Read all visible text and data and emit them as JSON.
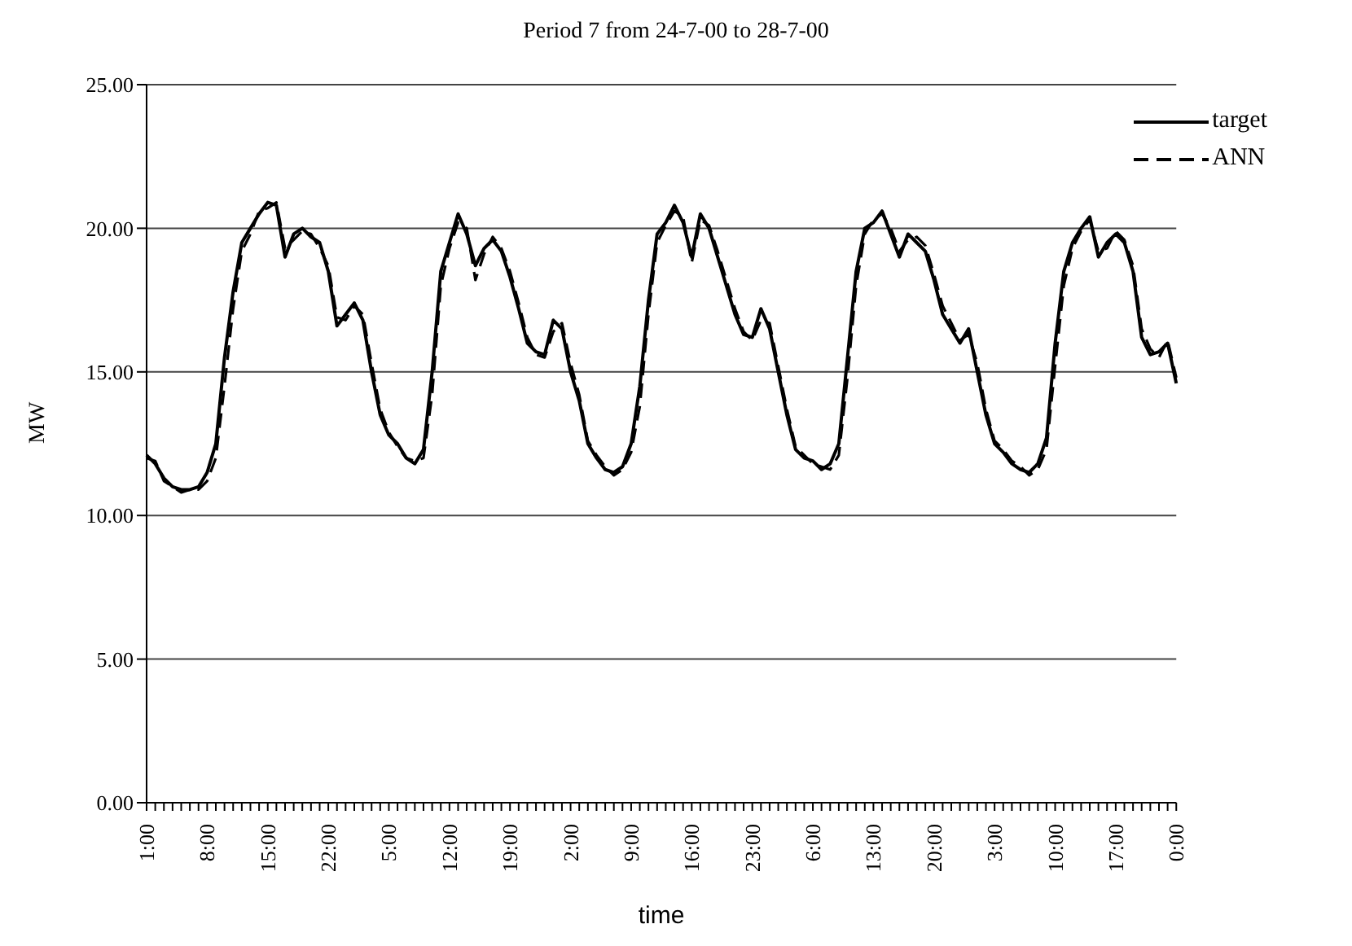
{
  "chart_data": {
    "type": "line",
    "title": "Period 7 from 24-7-00 to 28-7-00",
    "xlabel": "time",
    "ylabel": "MW",
    "categories": [
      "1:00",
      null,
      null,
      null,
      null,
      null,
      null,
      "8:00",
      null,
      null,
      null,
      null,
      null,
      null,
      "15:00",
      null,
      null,
      null,
      null,
      null,
      null,
      "22:00",
      null,
      null,
      null,
      null,
      null,
      null,
      "5:00",
      null,
      null,
      null,
      null,
      null,
      null,
      "12:00",
      null,
      null,
      null,
      null,
      null,
      null,
      "19:00",
      null,
      null,
      null,
      null,
      null,
      null,
      "2:00",
      null,
      null,
      null,
      null,
      null,
      null,
      "9:00",
      null,
      null,
      null,
      null,
      null,
      null,
      "16:00",
      null,
      null,
      null,
      null,
      null,
      null,
      "23:00",
      null,
      null,
      null,
      null,
      null,
      null,
      "6:00",
      null,
      null,
      null,
      null,
      null,
      null,
      "13:00",
      null,
      null,
      null,
      null,
      null,
      null,
      "20:00",
      null,
      null,
      null,
      null,
      null,
      null,
      "3:00",
      null,
      null,
      null,
      null,
      null,
      null,
      "10:00",
      null,
      null,
      null,
      null,
      null,
      null,
      "17:00",
      null,
      null,
      null,
      null,
      null,
      null,
      "0:00"
    ],
    "series": [
      {
        "name": "target",
        "color": "#000000",
        "line_style": "solid",
        "values": [
          12.1,
          11.8,
          11.3,
          11.0,
          10.9,
          10.9,
          11.0,
          11.5,
          12.5,
          15.5,
          17.8,
          19.5,
          20.0,
          20.5,
          20.9,
          20.8,
          19.0,
          19.8,
          20.0,
          19.7,
          19.5,
          18.5,
          16.6,
          17.0,
          17.4,
          16.8,
          15.0,
          13.5,
          12.8,
          12.5,
          12.0,
          11.8,
          12.3,
          15.0,
          18.5,
          19.5,
          20.5,
          19.8,
          18.7,
          19.3,
          19.6,
          19.2,
          18.3,
          17.2,
          16.0,
          15.7,
          15.6,
          16.8,
          16.5,
          15.0,
          14.0,
          12.5,
          12.0,
          11.6,
          11.5,
          11.7,
          12.5,
          14.5,
          17.5,
          19.8,
          20.2,
          20.8,
          20.2,
          19.0,
          20.5,
          20.0,
          19.0,
          18.0,
          17.0,
          16.3,
          16.2,
          17.2,
          16.5,
          15.0,
          13.5,
          12.3,
          12.0,
          11.9,
          11.6,
          11.8,
          12.5,
          15.5,
          18.5,
          20.0,
          20.2,
          20.6,
          19.8,
          19.0,
          19.8,
          19.5,
          19.2,
          18.2,
          17.0,
          16.5,
          16.0,
          16.5,
          15.0,
          13.5,
          12.5,
          12.2,
          11.8,
          11.6,
          11.5,
          11.8,
          12.7,
          16.0,
          18.5,
          19.5,
          20.0,
          20.4,
          19.0,
          19.5,
          19.8,
          19.5,
          18.5,
          16.2,
          15.6,
          15.7,
          16.0,
          14.6
        ]
      },
      {
        "name": "ANN",
        "color": "#000000",
        "line_style": "dashed",
        "values": [
          12.0,
          11.9,
          11.2,
          11.0,
          10.8,
          10.9,
          10.9,
          11.2,
          12.0,
          14.5,
          17.2,
          19.2,
          19.8,
          20.6,
          20.7,
          20.9,
          19.3,
          19.6,
          19.9,
          19.8,
          19.3,
          18.7,
          16.9,
          16.8,
          17.3,
          17.0,
          15.3,
          13.7,
          12.9,
          12.4,
          12.0,
          11.9,
          12.0,
          14.2,
          18.0,
          19.3,
          20.2,
          20.0,
          18.2,
          19.1,
          19.7,
          19.3,
          18.5,
          17.4,
          16.2,
          15.6,
          15.5,
          16.4,
          16.7,
          15.3,
          14.2,
          12.6,
          12.1,
          11.7,
          11.4,
          11.6,
          12.2,
          13.8,
          17.0,
          19.5,
          20.1,
          20.6,
          20.4,
          18.8,
          20.3,
          20.1,
          19.2,
          18.2,
          17.2,
          16.4,
          16.1,
          16.8,
          16.7,
          15.2,
          13.7,
          12.4,
          12.1,
          11.8,
          11.7,
          11.6,
          12.1,
          14.8,
          18.0,
          19.8,
          20.3,
          20.5,
          20.0,
          19.2,
          19.6,
          19.7,
          19.4,
          18.4,
          17.3,
          16.7,
          16.1,
          16.3,
          15.3,
          13.7,
          12.6,
          12.3,
          11.9,
          11.7,
          11.4,
          11.6,
          12.3,
          15.2,
          18.0,
          19.3,
          19.9,
          20.3,
          19.2,
          19.3,
          19.9,
          19.6,
          18.7,
          16.5,
          15.8,
          15.5,
          16.1,
          14.8
        ]
      }
    ],
    "ylim": [
      0,
      25
    ],
    "yticks": [
      {
        "value": 0,
        "label": "0.00"
      },
      {
        "value": 5,
        "label": "5.00"
      },
      {
        "value": 10,
        "label": "10.00"
      },
      {
        "value": 15,
        "label": "15.00"
      },
      {
        "value": 20,
        "label": "20.00"
      },
      {
        "value": 25,
        "label": "25.00"
      }
    ],
    "grid": "y",
    "legend": "top right",
    "marker": "none"
  }
}
